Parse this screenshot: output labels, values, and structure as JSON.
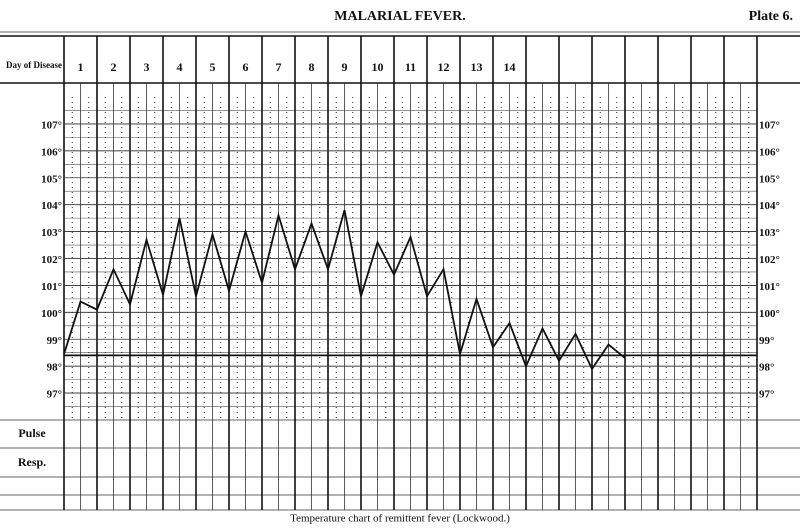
{
  "chart_data": {
    "type": "line",
    "title": "MALARIAL FEVER.",
    "plate": "Plate 6.",
    "caption": "Temperature chart of remittent fever (Lockwood.)",
    "category_label": "Day of Disease",
    "categories": [
      "1",
      "2",
      "3",
      "4",
      "5",
      "6",
      "7",
      "8",
      "9",
      "10",
      "11",
      "12",
      "13",
      "14",
      null,
      null,
      null,
      null,
      null,
      null,
      null
    ],
    "row_labels": [
      "Pulse",
      "Resp."
    ],
    "x": [
      1,
      1.5,
      2,
      2.5,
      3,
      3.5,
      4,
      4.5,
      5,
      5.5,
      6,
      6.5,
      7,
      7.5,
      8,
      8.5,
      9,
      9.5,
      10,
      10.5,
      11,
      11.5,
      12,
      12.5,
      13,
      13.5,
      14,
      14.5,
      15,
      15.5,
      16,
      16.5,
      17,
      17.5,
      18
    ],
    "values": [
      98.45,
      100.4,
      100.1,
      101.6,
      100.3,
      102.7,
      100.65,
      103.5,
      100.6,
      102.9,
      100.8,
      103.0,
      101.1,
      103.6,
      101.6,
      103.3,
      101.6,
      103.8,
      100.6,
      102.6,
      101.4,
      102.8,
      100.6,
      101.6,
      98.45,
      100.5,
      98.7,
      99.6,
      98.0,
      99.4,
      98.2,
      99.2,
      97.9,
      98.8,
      98.3
    ],
    "color": "#111111",
    "xlim": [
      1,
      22
    ],
    "ylim": [
      96,
      108
    ],
    "yticks": [
      {
        "value": 107,
        "label": "107°"
      },
      {
        "value": 106,
        "label": "106°"
      },
      {
        "value": 105,
        "label": "105°"
      },
      {
        "value": 104,
        "label": "104°"
      },
      {
        "value": 103,
        "label": "103°"
      },
      {
        "value": 102,
        "label": "102°"
      },
      {
        "value": 101,
        "label": "101°"
      },
      {
        "value": 100,
        "label": "100°"
      },
      {
        "value": 99,
        "label": "99°"
      },
      {
        "value": 98,
        "label": "98°"
      },
      {
        "value": 97,
        "label": "97°"
      }
    ],
    "normal_line": 98.4,
    "grid": true
  }
}
